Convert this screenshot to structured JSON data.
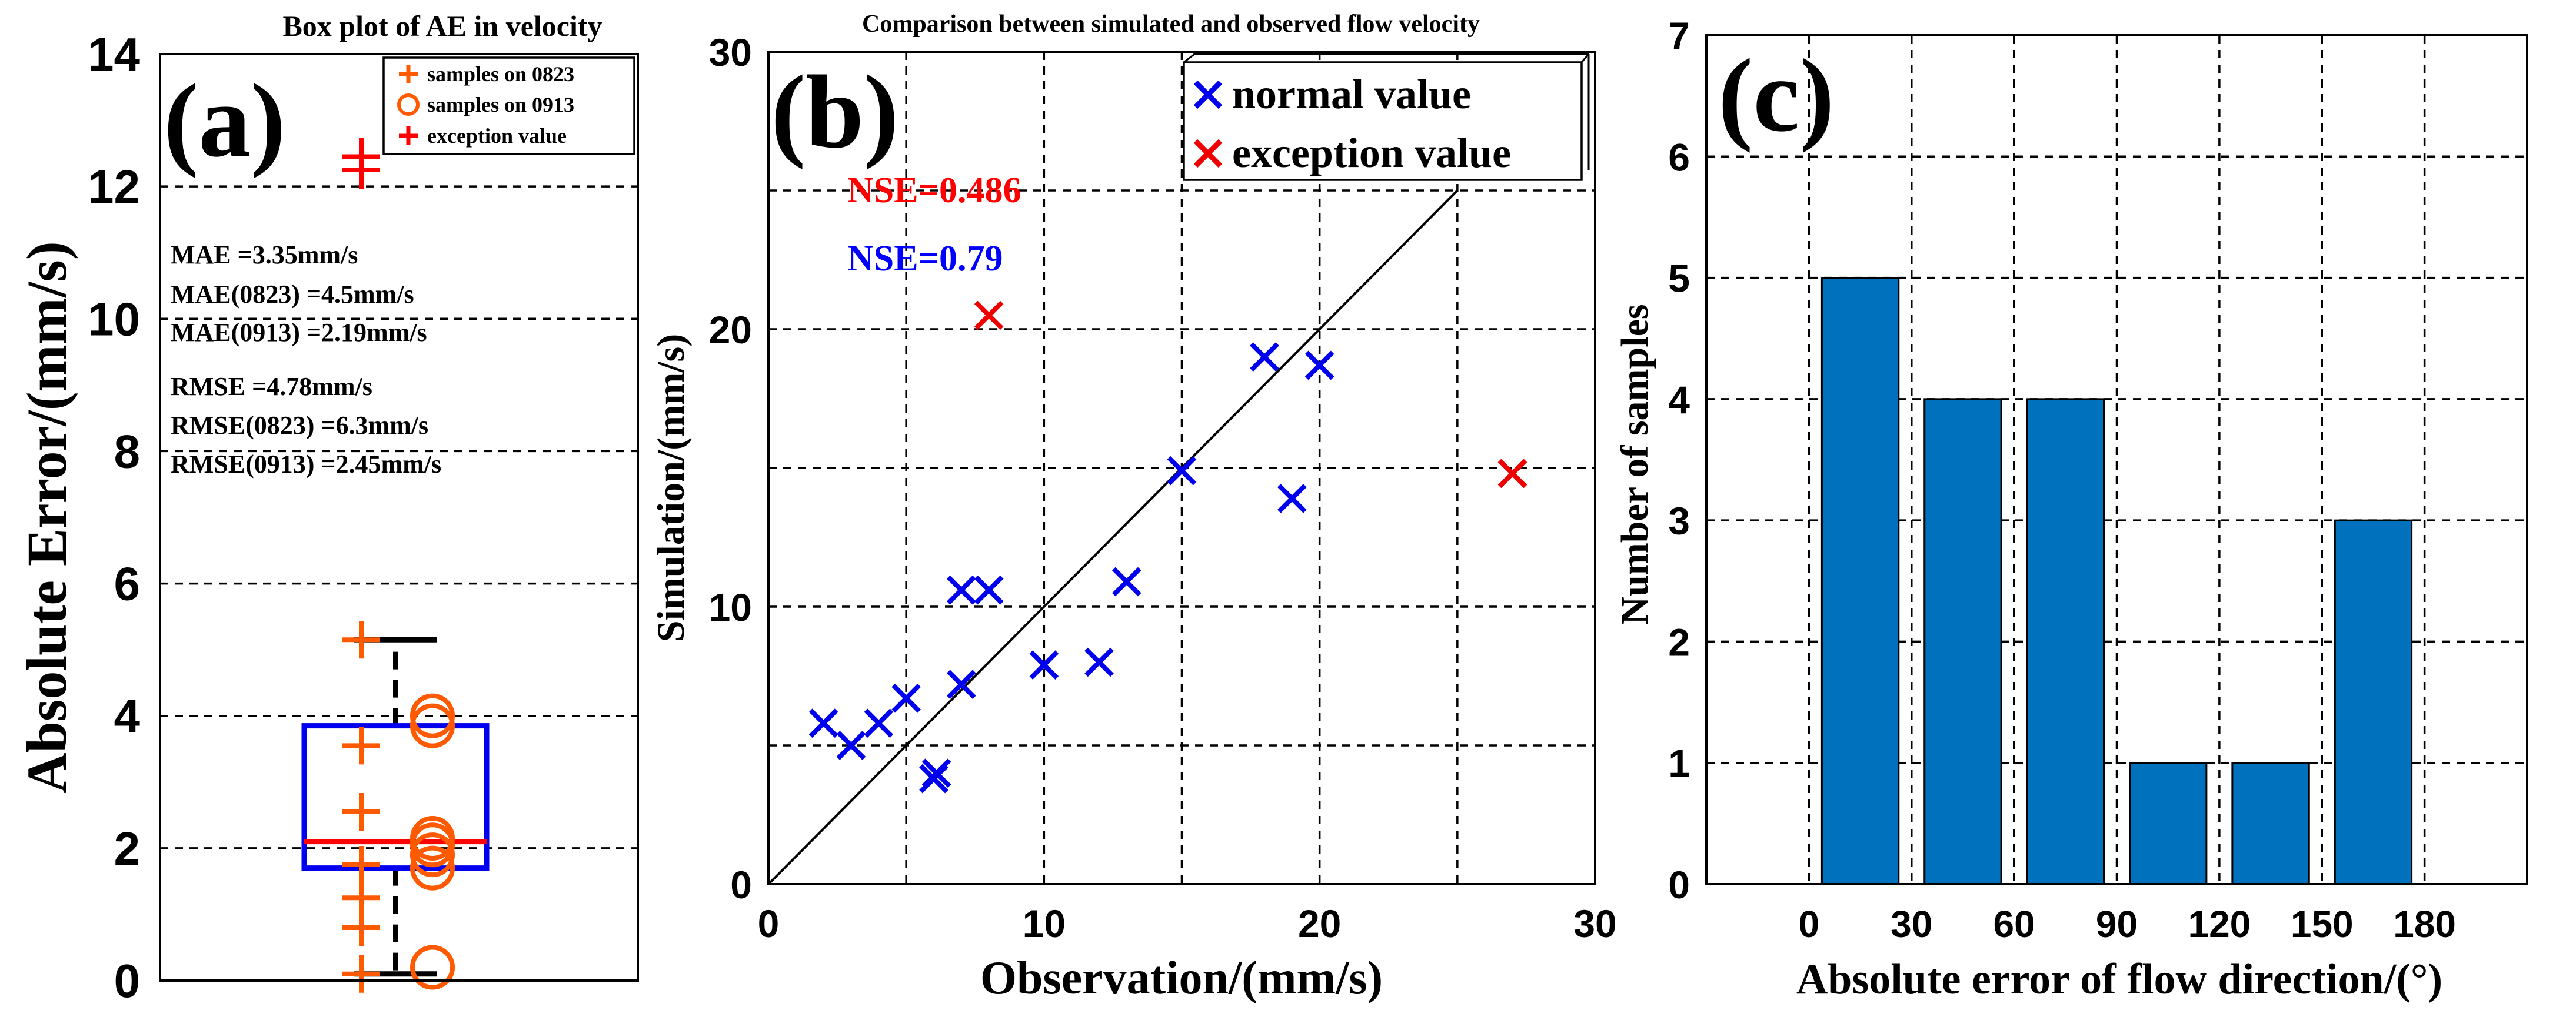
{
  "chart_data": [
    {
      "type": "box",
      "panel_label": "(a)",
      "title": "Box plot of AE in velocity",
      "ylabel": "Absolute Error/(mm/s)",
      "ylim": [
        0,
        14
      ],
      "yticks": [
        0,
        2,
        4,
        6,
        8,
        10,
        12,
        14
      ],
      "grid": true,
      "box": {
        "q1": 1.7,
        "median": 2.1,
        "q3": 3.85,
        "whisker_low": 0.1,
        "whisker_high": 5.15
      },
      "series": [
        {
          "name": "samples on 0823",
          "marker": "plus",
          "color": "#ff5a00",
          "values": [
            0.1,
            0.8,
            1.25,
            1.75,
            2.55,
            3.55,
            5.15
          ]
        },
        {
          "name": "samples on 0913",
          "marker": "circle",
          "color": "#ff5a00",
          "values": [
            0.2,
            1.7,
            1.9,
            2.05,
            2.15,
            3.85,
            4.0
          ]
        },
        {
          "name": "exception value",
          "marker": "plus",
          "color": "#ff0000",
          "values": [
            12.25,
            12.45
          ]
        }
      ],
      "legend_position": "top-right",
      "stats": [
        "MAE =3.35mm/s",
        "MAE(0823) =4.5mm/s",
        "MAE(0913) =2.19mm/s",
        "RMSE =4.78mm/s",
        "RMSE(0823) =6.3mm/s",
        "RMSE(0913) =2.45mm/s"
      ]
    },
    {
      "type": "scatter",
      "panel_label": "(b)",
      "title": "Comparison between simulated and observed flow velocity",
      "xlabel": "Observation/(mm/s)",
      "ylabel": "Simulation/(mm/s)",
      "xlim": [
        0,
        30
      ],
      "ylim": [
        0,
        30
      ],
      "xticks": [
        0,
        10,
        20,
        30
      ],
      "yticks": [
        0,
        10,
        20,
        30
      ],
      "grid": true,
      "reference_line": "y = x",
      "series": [
        {
          "name": "normal value",
          "color": "#0000ee",
          "points": [
            [
              2,
              5.8
            ],
            [
              3,
              5.0
            ],
            [
              4,
              5.8
            ],
            [
              5,
              6.7
            ],
            [
              6,
              3.8
            ],
            [
              6.1,
              4.0
            ],
            [
              7,
              7.2
            ],
            [
              7,
              10.6
            ],
            [
              8,
              10.6
            ],
            [
              10,
              7.9
            ],
            [
              12,
              8.0
            ],
            [
              13,
              10.9
            ],
            [
              15,
              14.9
            ],
            [
              18,
              19.0
            ],
            [
              19,
              13.9
            ],
            [
              20,
              18.7
            ]
          ]
        },
        {
          "name": "exception value",
          "color": "#ee0000",
          "points": [
            [
              8,
              20.5
            ],
            [
              27,
              14.8
            ]
          ]
        }
      ],
      "annotations": [
        {
          "text": "NSE=0.486",
          "color": "#ff0000"
        },
        {
          "text": "NSE=0.79",
          "color": "#0000ff"
        }
      ],
      "legend_position": "top-right"
    },
    {
      "type": "bar",
      "panel_label": "(c)",
      "title": "",
      "xlabel": "Absolute error of flow direction/(°)",
      "ylabel": "Number of samples",
      "xlim": [
        -30,
        210
      ],
      "xticks": [
        "0",
        "30",
        "60",
        "90",
        "120",
        "150",
        "180"
      ],
      "ylim": [
        0,
        7
      ],
      "yticks": [
        0,
        1,
        2,
        3,
        4,
        5,
        6,
        7
      ],
      "grid": true,
      "bin_edges": [
        0,
        30,
        60,
        90,
        120,
        150,
        180
      ],
      "values": [
        5,
        4,
        4,
        1,
        1,
        3
      ],
      "color": "#0072bd"
    }
  ]
}
